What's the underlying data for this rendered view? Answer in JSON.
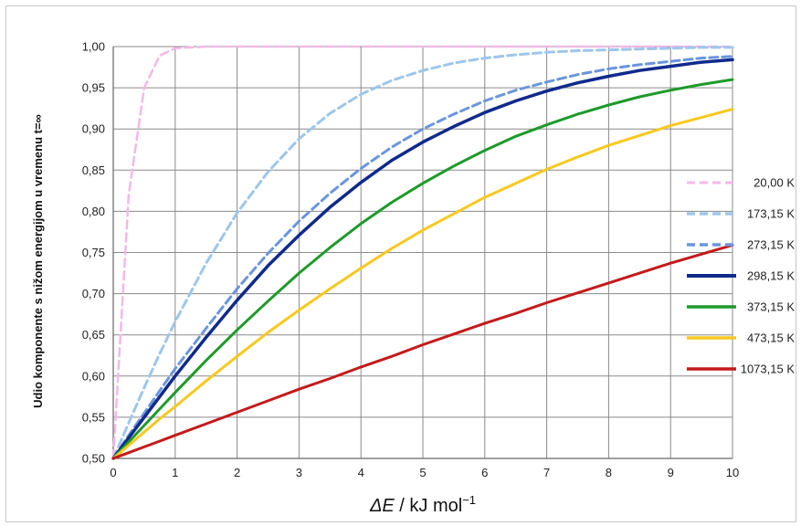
{
  "chart_data": {
    "type": "line",
    "title": "",
    "xlabel_parts": [
      "ΔE",
      " / kJ mol",
      "−1"
    ],
    "ylabel": "Udio komponente s nižom energijom u vremenu t=∞",
    "xlim": [
      0,
      10
    ],
    "ylim": [
      0.5,
      1.0
    ],
    "x_ticks": [
      "0",
      "1",
      "2",
      "3",
      "4",
      "5",
      "6",
      "7",
      "8",
      "9",
      "10"
    ],
    "y_ticks": [
      "0,50",
      "0,55",
      "0,60",
      "0,65",
      "0,70",
      "0,75",
      "0,80",
      "0,85",
      "0,90",
      "0,95",
      "1,00"
    ],
    "grid": true,
    "legend_position": "right",
    "x": [
      0,
      0.25,
      0.5,
      0.75,
      1,
      1.5,
      2,
      2.5,
      3,
      3.5,
      4,
      4.5,
      5,
      5.5,
      6,
      6.5,
      7,
      7.5,
      8,
      8.5,
      9,
      9.5,
      10
    ],
    "series": [
      {
        "name": "20,00 K",
        "color": "#f4b8e8",
        "dashed": true,
        "width": 2.5,
        "values": [
          0.5,
          0.82,
          0.95,
          0.989,
          0.998,
          1.0,
          1.0,
          1.0,
          1.0,
          1.0,
          1.0,
          1.0,
          1.0,
          1.0,
          1.0,
          1.0,
          1.0,
          1.0,
          1.0,
          1.0,
          1.0,
          1.0,
          1.0
        ]
      },
      {
        "name": "173,15 K",
        "color": "#9dc6ec",
        "dashed": true,
        "width": 3,
        "values": [
          0.5,
          0.543,
          0.586,
          0.627,
          0.666,
          0.737,
          0.798,
          0.848,
          0.888,
          0.919,
          0.942,
          0.959,
          0.971,
          0.98,
          0.986,
          0.99,
          0.993,
          0.995,
          0.996,
          0.997,
          0.998,
          0.999,
          0.999
        ]
      },
      {
        "name": "273,15 K",
        "color": "#6a95de",
        "dashed": true,
        "width": 3,
        "values": [
          0.5,
          0.528,
          0.555,
          0.582,
          0.609,
          0.658,
          0.706,
          0.749,
          0.788,
          0.822,
          0.852,
          0.878,
          0.9,
          0.918,
          0.934,
          0.947,
          0.957,
          0.966,
          0.973,
          0.978,
          0.982,
          0.986,
          0.988
        ]
      },
      {
        "name": "298,15 K",
        "color": "#102a8c",
        "dashed": false,
        "width": 3.5,
        "values": [
          0.5,
          0.525,
          0.55,
          0.575,
          0.6,
          0.647,
          0.692,
          0.734,
          0.771,
          0.805,
          0.835,
          0.862,
          0.884,
          0.903,
          0.92,
          0.934,
          0.946,
          0.956,
          0.964,
          0.971,
          0.976,
          0.981,
          0.984
        ]
      },
      {
        "name": "373,15 K",
        "color": "#1e9a2a",
        "dashed": false,
        "width": 3,
        "values": [
          0.5,
          0.52,
          0.54,
          0.56,
          0.58,
          0.619,
          0.656,
          0.691,
          0.725,
          0.756,
          0.785,
          0.811,
          0.834,
          0.855,
          0.874,
          0.891,
          0.905,
          0.918,
          0.929,
          0.939,
          0.947,
          0.954,
          0.96
        ]
      },
      {
        "name": "473,15 K",
        "color": "#f8c81e",
        "dashed": false,
        "width": 3,
        "values": [
          0.5,
          0.516,
          0.532,
          0.548,
          0.563,
          0.594,
          0.624,
          0.653,
          0.68,
          0.706,
          0.731,
          0.755,
          0.777,
          0.797,
          0.817,
          0.834,
          0.851,
          0.866,
          0.88,
          0.892,
          0.904,
          0.914,
          0.924
        ]
      },
      {
        "name": "1073,15 K",
        "color": "#c41a1a",
        "dashed": false,
        "width": 3,
        "values": [
          0.5,
          0.507,
          0.514,
          0.521,
          0.528,
          0.542,
          0.556,
          0.57,
          0.584,
          0.597,
          0.611,
          0.624,
          0.638,
          0.651,
          0.664,
          0.676,
          0.689,
          0.701,
          0.713,
          0.725,
          0.737,
          0.748,
          0.759
        ]
      }
    ]
  }
}
